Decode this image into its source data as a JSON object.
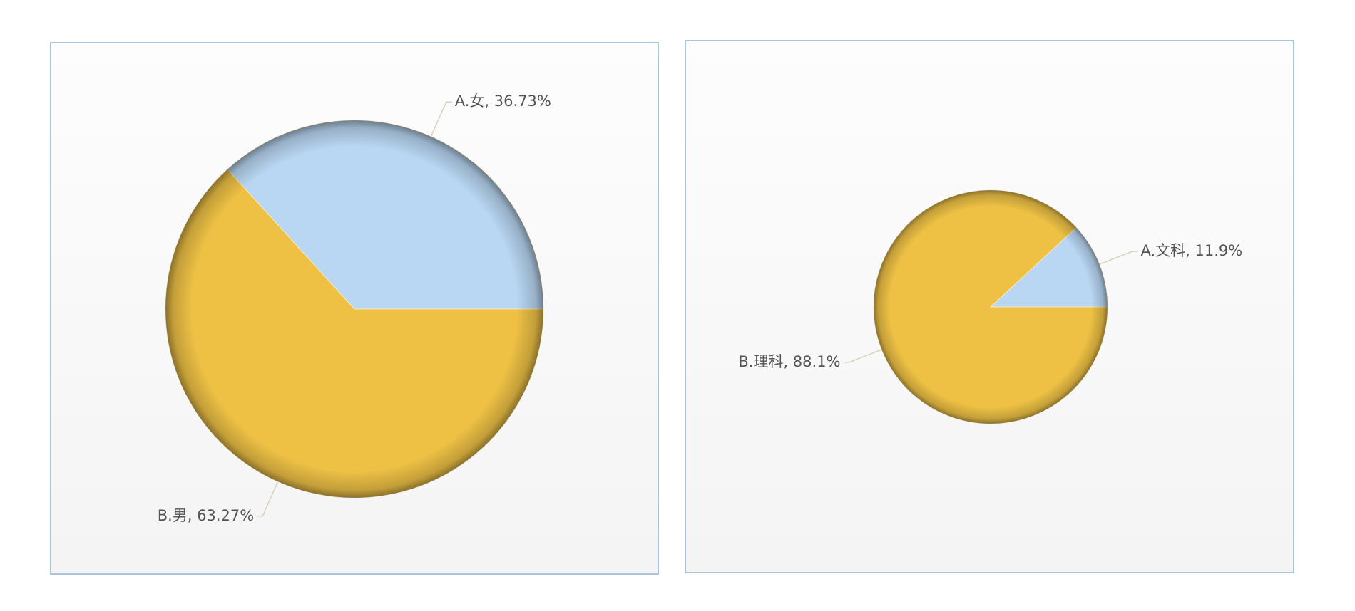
{
  "chart_data": [
    {
      "type": "pie",
      "values": [
        36.73,
        63.27
      ],
      "value_labels": [
        "A.女, 36.73%",
        "B.男, 63.27%"
      ],
      "colors": [
        "#b9d7f3",
        "#eec145"
      ]
    },
    {
      "type": "pie",
      "values": [
        11.9,
        88.1
      ],
      "value_labels": [
        "A.文科, 11.9%",
        "B.理科, 88.1%"
      ],
      "colors": [
        "#b9d7f3",
        "#eec145"
      ]
    }
  ]
}
